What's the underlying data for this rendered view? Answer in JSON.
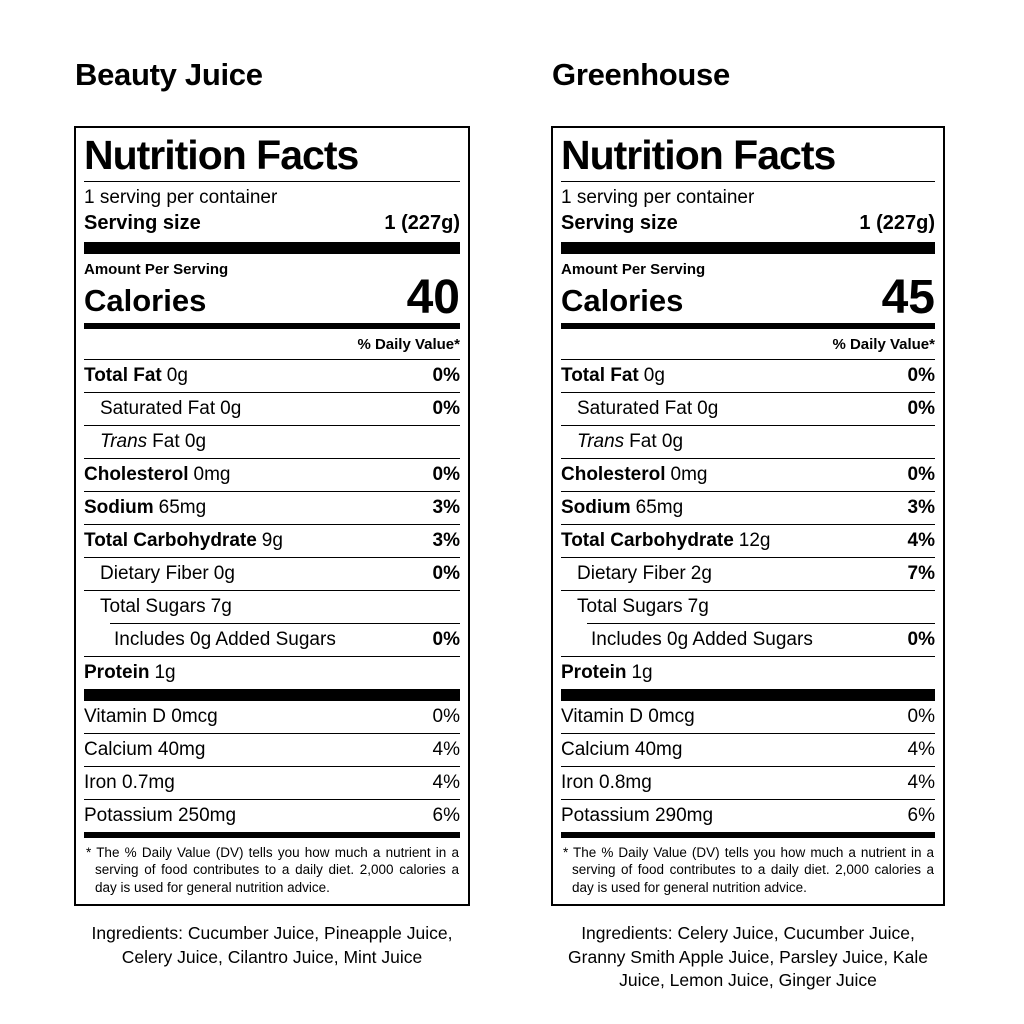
{
  "labels": [
    {
      "title": "Beauty Juice",
      "panel": {
        "header": "Nutrition Facts",
        "servings": "1 serving per container",
        "serving_size_label": "Serving size",
        "serving_size_value": "1 (227g)",
        "amount_per_serving": "Amount Per Serving",
        "calories_label": "Calories",
        "calories_value": "40",
        "dv_header": "% Daily Value*",
        "rows": [
          {
            "name": "Total Fat",
            "amount": "0g",
            "dv": "0%"
          },
          {
            "name": "Saturated Fat",
            "amount": "0g",
            "dv": "0%"
          },
          {
            "name": "Trans",
            "amount": "Fat 0g",
            "dv": ""
          },
          {
            "name": "Cholesterol",
            "amount": "0mg",
            "dv": "0%"
          },
          {
            "name": "Sodium",
            "amount": "65mg",
            "dv": "3%"
          },
          {
            "name": "Total Carbohydrate",
            "amount": "9g",
            "dv": "3%"
          },
          {
            "name": "Dietary Fiber",
            "amount": "0g",
            "dv": "0%"
          },
          {
            "name": "Total Sugars",
            "amount": "7g",
            "dv": ""
          },
          {
            "name": "Includes 0g Added Sugars",
            "amount": "",
            "dv": "0%"
          },
          {
            "name": "Protein",
            "amount": "1g",
            "dv": ""
          }
        ],
        "vitamins": [
          {
            "name": "Vitamin D 0mcg",
            "dv": "0%"
          },
          {
            "name": "Calcium 40mg",
            "dv": "4%"
          },
          {
            "name": "Iron 0.7mg",
            "dv": "4%"
          },
          {
            "name": "Potassium 250mg",
            "dv": "6%"
          }
        ],
        "footnote": "* The % Daily Value (DV) tells you how much a nutrient in a serving of food contributes to a daily diet. 2,000 calories a day is used for general nutrition advice."
      },
      "ingredients": "Ingredients: Cucumber Juice, Pineapple Juice, Celery Juice, Cilantro Juice, Mint Juice"
    },
    {
      "title": "Greenhouse",
      "panel": {
        "header": "Nutrition Facts",
        "servings": "1 serving per container",
        "serving_size_label": "Serving size",
        "serving_size_value": "1 (227g)",
        "amount_per_serving": "Amount Per Serving",
        "calories_label": "Calories",
        "calories_value": "45",
        "dv_header": "% Daily Value*",
        "rows": [
          {
            "name": "Total Fat",
            "amount": "0g",
            "dv": "0%"
          },
          {
            "name": "Saturated Fat",
            "amount": "0g",
            "dv": "0%"
          },
          {
            "name": "Trans",
            "amount": "Fat 0g",
            "dv": ""
          },
          {
            "name": "Cholesterol",
            "amount": "0mg",
            "dv": "0%"
          },
          {
            "name": "Sodium",
            "amount": "65mg",
            "dv": "3%"
          },
          {
            "name": "Total Carbohydrate",
            "amount": "12g",
            "dv": "4%"
          },
          {
            "name": "Dietary Fiber",
            "amount": "2g",
            "dv": "7%"
          },
          {
            "name": "Total Sugars",
            "amount": "7g",
            "dv": ""
          },
          {
            "name": "Includes 0g Added Sugars",
            "amount": "",
            "dv": "0%"
          },
          {
            "name": "Protein",
            "amount": "1g",
            "dv": ""
          }
        ],
        "vitamins": [
          {
            "name": "Vitamin D 0mcg",
            "dv": "0%"
          },
          {
            "name": "Calcium 40mg",
            "dv": "4%"
          },
          {
            "name": "Iron 0.8mg",
            "dv": "4%"
          },
          {
            "name": "Potassium 290mg",
            "dv": "6%"
          }
        ],
        "footnote": "* The % Daily Value (DV) tells you how much a nutrient in a serving of food contributes to a daily diet. 2,000 calories a day is used for general nutrition advice."
      },
      "ingredients": "Ingredients: Celery Juice, Cucumber Juice, Granny Smith Apple Juice, Parsley Juice, Kale Juice, Lemon Juice, Ginger Juice"
    }
  ]
}
